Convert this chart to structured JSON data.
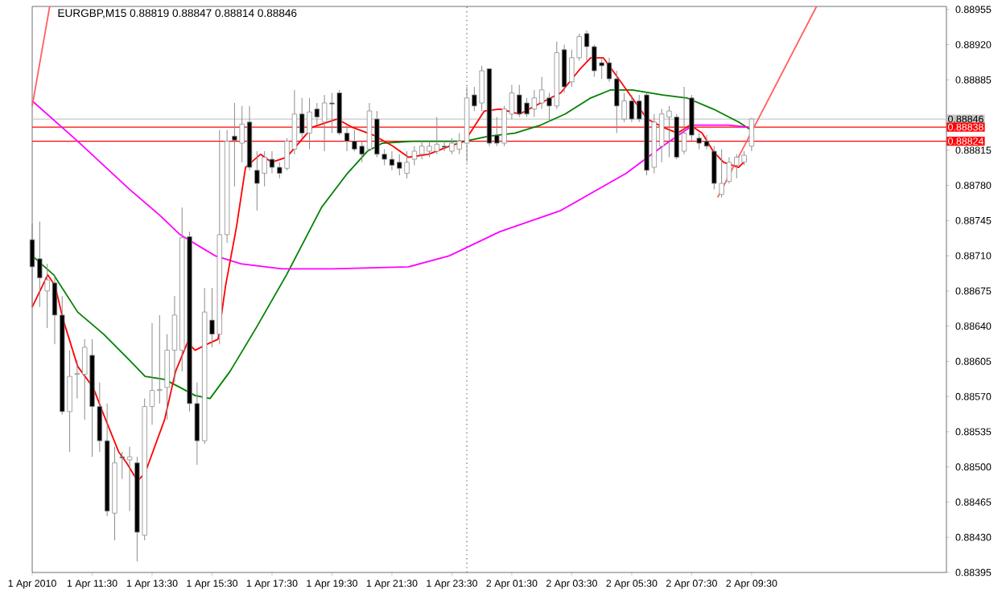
{
  "chart_data": {
    "type": "candlestick",
    "title": "EURGBP,M15 0.88819 0.88847 0.88814 0.88846",
    "xlim": [
      "2010-04-01T09:30",
      "2010-04-02T16:00"
    ],
    "ylim": [
      0.88395,
      0.88958
    ],
    "xticks": [
      {
        "value": "2010-04-01T09:30",
        "label": "1 Apr 2010"
      },
      {
        "value": "2010-04-01T11:30",
        "label": "1 Apr 11:30"
      },
      {
        "value": "2010-04-01T13:30",
        "label": "1 Apr 13:30"
      },
      {
        "value": "2010-04-01T15:30",
        "label": "1 Apr 15:30"
      },
      {
        "value": "2010-04-01T17:30",
        "label": "1 Apr 17:30"
      },
      {
        "value": "2010-04-01T19:30",
        "label": "1 Apr 19:30"
      },
      {
        "value": "2010-04-01T21:30",
        "label": "1 Apr 21:30"
      },
      {
        "value": "2010-04-01T23:30",
        "label": "1 Apr 23:30"
      },
      {
        "value": "2010-04-02T01:30",
        "label": "2 Apr 01:30"
      },
      {
        "value": "2010-04-02T03:30",
        "label": "2 Apr 03:30"
      },
      {
        "value": "2010-04-02T05:30",
        "label": "2 Apr 05:30"
      },
      {
        "value": "2010-04-02T07:30",
        "label": "2 Apr 07:30"
      },
      {
        "value": "2010-04-02T09:30",
        "label": "2 Apr 09:30"
      }
    ],
    "yticks": [
      0.88395,
      {
        "value": 0.8843,
        "label": "0.88430"
      },
      0.88465,
      {
        "value": 0.885,
        "label": "0.88500"
      },
      0.88535,
      {
        "value": 0.8857,
        "label": "0.88570"
      },
      0.88605,
      {
        "value": 0.8864,
        "label": "0.88640"
      },
      0.88675,
      {
        "value": 0.8871,
        "label": "0.88710"
      },
      0.88745,
      {
        "value": 0.8878,
        "label": "0.88780"
      },
      0.88815,
      {
        "value": 0.8885,
        "label": null
      },
      0.88885,
      {
        "value": 0.8892,
        "label": "0.88920"
      },
      0.88955
    ],
    "x": [
      "2010-04-01T09:30",
      "2010-04-01T09:45",
      "2010-04-01T10:00",
      "2010-04-01T10:15",
      "2010-04-01T10:30",
      "2010-04-01T10:45",
      "2010-04-01T11:00",
      "2010-04-01T11:15",
      "2010-04-01T11:30",
      "2010-04-01T11:45",
      "2010-04-01T12:00",
      "2010-04-01T12:15",
      "2010-04-01T12:30",
      "2010-04-01T12:45",
      "2010-04-01T13:00",
      "2010-04-01T13:15",
      "2010-04-01T13:30",
      "2010-04-01T13:45",
      "2010-04-01T14:00",
      "2010-04-01T14:15",
      "2010-04-01T14:30",
      "2010-04-01T14:45",
      "2010-04-01T15:00",
      "2010-04-01T15:15",
      "2010-04-01T15:30",
      "2010-04-01T15:45",
      "2010-04-01T16:00",
      "2010-04-01T16:15",
      "2010-04-01T16:30",
      "2010-04-01T16:45",
      "2010-04-01T17:00",
      "2010-04-01T17:15",
      "2010-04-01T17:30",
      "2010-04-01T17:45",
      "2010-04-01T18:00",
      "2010-04-01T18:15",
      "2010-04-01T18:30",
      "2010-04-01T18:45",
      "2010-04-01T19:00",
      "2010-04-01T19:15",
      "2010-04-01T19:30",
      "2010-04-01T19:45",
      "2010-04-01T20:00",
      "2010-04-01T20:15",
      "2010-04-01T20:30",
      "2010-04-01T20:45",
      "2010-04-01T21:00",
      "2010-04-01T21:15",
      "2010-04-01T21:30",
      "2010-04-01T21:45",
      "2010-04-01T22:00",
      "2010-04-01T22:15",
      "2010-04-01T22:30",
      "2010-04-01T22:45",
      "2010-04-01T23:00",
      "2010-04-01T23:15",
      "2010-04-01T23:30",
      "2010-04-01T23:45",
      "2010-04-02T00:00",
      "2010-04-02T00:15",
      "2010-04-02T00:30",
      "2010-04-02T00:45",
      "2010-04-02T01:00",
      "2010-04-02T01:15",
      "2010-04-02T01:30",
      "2010-04-02T01:45",
      "2010-04-02T02:00",
      "2010-04-02T02:15",
      "2010-04-02T02:30",
      "2010-04-02T02:45",
      "2010-04-02T03:00",
      "2010-04-02T03:15",
      "2010-04-02T03:30",
      "2010-04-02T03:45",
      "2010-04-02T04:00",
      "2010-04-02T04:15",
      "2010-04-02T04:30",
      "2010-04-02T04:45",
      "2010-04-02T05:00",
      "2010-04-02T05:15",
      "2010-04-02T05:30",
      "2010-04-02T05:45",
      "2010-04-02T06:00",
      "2010-04-02T06:15",
      "2010-04-02T06:30",
      "2010-04-02T06:45",
      "2010-04-02T07:00",
      "2010-04-02T07:15",
      "2010-04-02T07:30",
      "2010-04-02T07:45",
      "2010-04-02T08:00",
      "2010-04-02T08:15",
      "2010-04-02T08:30",
      "2010-04-02T08:45",
      "2010-04-02T09:00",
      "2010-04-02T09:15",
      "2010-04-02T09:30"
    ],
    "ohlc": [
      [
        0.88726,
        0.88742,
        0.88659,
        0.88699
      ],
      [
        0.88707,
        0.88744,
        0.88659,
        0.88688
      ],
      [
        0.88675,
        0.88702,
        0.88638,
        0.88686
      ],
      [
        0.88683,
        0.88691,
        0.88622,
        0.88651
      ],
      [
        0.88651,
        0.8867,
        0.88552,
        0.88555
      ],
      [
        0.88555,
        0.88616,
        0.88515,
        0.8859
      ],
      [
        0.88592,
        0.88606,
        0.88568,
        0.88593
      ],
      [
        0.88592,
        0.88627,
        0.88547,
        0.88619
      ],
      [
        0.88611,
        0.88627,
        0.8851,
        0.8856
      ],
      [
        0.8856,
        0.88584,
        0.88515,
        0.88526
      ],
      [
        0.88526,
        0.88563,
        0.88451,
        0.88456
      ],
      [
        0.88454,
        0.8852,
        0.88427,
        0.88504
      ],
      [
        0.8851,
        0.88515,
        0.88488,
        0.88509
      ],
      [
        0.88507,
        0.8852,
        0.88456,
        0.8851
      ],
      [
        0.88504,
        0.8851,
        0.88406,
        0.88435
      ],
      [
        0.88432,
        0.88568,
        0.88427,
        0.8856
      ],
      [
        0.8856,
        0.88643,
        0.88542,
        0.88576
      ],
      [
        0.88576,
        0.88651,
        0.88563,
        0.88577
      ],
      [
        0.88579,
        0.88632,
        0.88547,
        0.88616
      ],
      [
        0.88616,
        0.8867,
        0.88584,
        0.88651
      ],
      [
        0.88616,
        0.88758,
        0.88595,
        0.88728
      ],
      [
        0.88729,
        0.88734,
        0.88555,
        0.88563
      ],
      [
        0.88563,
        0.88584,
        0.88502,
        0.88526
      ],
      [
        0.88526,
        0.88678,
        0.88523,
        0.88654
      ],
      [
        0.88646,
        0.88678,
        0.88619,
        0.88632
      ],
      [
        0.88632,
        0.88835,
        0.88622,
        0.88731
      ],
      [
        0.88731,
        0.88835,
        0.88723,
        0.88824
      ],
      [
        0.88829,
        0.88862,
        0.88779,
        0.88825
      ],
      [
        0.88822,
        0.88859,
        0.88803,
        0.88841
      ],
      [
        0.88843,
        0.88859,
        0.88795,
        0.88798
      ],
      [
        0.88795,
        0.88814,
        0.88755,
        0.88782
      ],
      [
        0.88792,
        0.88814,
        0.88779,
        0.88808
      ],
      [
        0.88806,
        0.88814,
        0.88792,
        0.88798
      ],
      [
        0.88798,
        0.88803,
        0.88787,
        0.88792
      ],
      [
        0.88797,
        0.88827,
        0.88795,
        0.88824
      ],
      [
        0.88816,
        0.88875,
        0.88811,
        0.88851
      ],
      [
        0.88851,
        0.88867,
        0.88827,
        0.88832
      ],
      [
        0.88832,
        0.88867,
        0.88816,
        0.88853
      ],
      [
        0.88856,
        0.88862,
        0.8884,
        0.88848
      ],
      [
        0.88843,
        0.8887,
        0.88814,
        0.88862
      ],
      [
        0.88862,
        0.88872,
        0.88832,
        0.88861
      ],
      [
        0.88872,
        0.88875,
        0.8883,
        0.88832
      ],
      [
        0.88832,
        0.8884,
        0.88814,
        0.88824
      ],
      [
        0.88824,
        0.88835,
        0.88814,
        0.88816
      ],
      [
        0.88819,
        0.88824,
        0.88803,
        0.88811
      ],
      [
        0.88816,
        0.88862,
        0.88814,
        0.88854
      ],
      [
        0.88846,
        0.88854,
        0.88808,
        0.88811
      ],
      [
        0.88811,
        0.88816,
        0.888,
        0.88806
      ],
      [
        0.88806,
        0.88814,
        0.88795,
        0.888
      ],
      [
        0.88803,
        0.88811,
        0.8879,
        0.88797
      ],
      [
        0.88792,
        0.88814,
        0.88787,
        0.88803
      ],
      [
        0.88806,
        0.88819,
        0.888,
        0.88814
      ],
      [
        0.88811,
        0.88824,
        0.88806,
        0.88819
      ],
      [
        0.88814,
        0.88824,
        0.88808,
        0.88819
      ],
      [
        0.88814,
        0.88848,
        0.88811,
        0.88821
      ],
      [
        0.88819,
        0.88824,
        0.88814,
        0.88818
      ],
      [
        0.88814,
        0.88827,
        0.88811,
        0.88822
      ],
      [
        0.88816,
        0.88832,
        0.88811,
        0.88824
      ],
      [
        0.88822,
        0.88878,
        0.88803,
        0.88867
      ],
      [
        0.8887,
        0.88878,
        0.88854,
        0.88859
      ],
      [
        0.88862,
        0.88899,
        0.88854,
        0.88894
      ],
      [
        0.88896,
        0.88896,
        0.88819,
        0.88822
      ],
      [
        0.8883,
        0.88848,
        0.88819,
        0.88822
      ],
      [
        0.88822,
        0.88859,
        0.88819,
        0.88856
      ],
      [
        0.88851,
        0.8888,
        0.88846,
        0.88872
      ],
      [
        0.8887,
        0.8888,
        0.88848,
        0.88851
      ],
      [
        0.88862,
        0.88867,
        0.88848,
        0.88851
      ],
      [
        0.88856,
        0.88875,
        0.88848,
        0.88867
      ],
      [
        0.88862,
        0.88888,
        0.88856,
        0.88875
      ],
      [
        0.88867,
        0.88872,
        0.88843,
        0.88859
      ],
      [
        0.88859,
        0.88923,
        0.88856,
        0.88912
      ],
      [
        0.88915,
        0.8892,
        0.88872,
        0.88878
      ],
      [
        0.88883,
        0.88915,
        0.88878,
        0.88907
      ],
      [
        0.88907,
        0.88931,
        0.88904,
        0.88928
      ],
      [
        0.88931,
        0.88934,
        0.88904,
        0.88918
      ],
      [
        0.88918,
        0.8892,
        0.88888,
        0.88894
      ],
      [
        0.88902,
        0.88907,
        0.88886,
        0.88899
      ],
      [
        0.88902,
        0.88907,
        0.88883,
        0.88886
      ],
      [
        0.88886,
        0.88894,
        0.88832,
        0.88859
      ],
      [
        0.88846,
        0.88872,
        0.88843,
        0.88864
      ],
      [
        0.88864,
        0.8887,
        0.88843,
        0.88846
      ],
      [
        0.88864,
        0.8887,
        0.88843,
        0.88846
      ],
      [
        0.8887,
        0.88872,
        0.8879,
        0.88795
      ],
      [
        0.88798,
        0.88851,
        0.88792,
        0.88843
      ],
      [
        0.88819,
        0.88856,
        0.88803,
        0.88851
      ],
      [
        0.88848,
        0.88859,
        0.88808,
        0.88854
      ],
      [
        0.88848,
        0.88851,
        0.88806,
        0.88808
      ],
      [
        0.88814,
        0.88878,
        0.88811,
        0.88832
      ],
      [
        0.88867,
        0.8887,
        0.88824,
        0.8883
      ],
      [
        0.88827,
        0.88832,
        0.88816,
        0.88822
      ],
      [
        0.88824,
        0.8883,
        0.88816,
        0.88819
      ],
      [
        0.88814,
        0.88819,
        0.88776,
        0.88782
      ],
      [
        0.88771,
        0.88816,
        0.88768,
        0.88782
      ],
      [
        0.88784,
        0.88808,
        0.88782,
        0.88803
      ],
      [
        0.888,
        0.88811,
        0.88787,
        0.88808
      ],
      [
        0.88803,
        0.88814,
        0.888,
        0.8881
      ],
      [
        0.88819,
        0.88847,
        0.88814,
        0.88846
      ]
    ],
    "series": [
      {
        "type": "line",
        "color": "#008000",
        "x": [
          "2010-04-01T09:30",
          "2010-04-01T10:13",
          "2010-04-01T11:01",
          "2010-04-01T11:53",
          "2010-04-01T12:45",
          "2010-04-01T13:16",
          "2010-04-01T13:55",
          "2010-04-01T14:26",
          "2010-04-01T14:56",
          "2010-04-01T15:26",
          "2010-04-01T16:06",
          "2010-04-01T16:58",
          "2010-04-01T17:59",
          "2010-04-01T19:09",
          "2010-04-01T20:01",
          "2010-04-01T20:41",
          "2010-04-01T21:11",
          "2010-04-01T22:12",
          "2010-04-01T23:13",
          "2010-04-01T23:56",
          "2010-04-02T00:44",
          "2010-04-02T01:36",
          "2010-04-02T02:28",
          "2010-04-02T03:17",
          "2010-04-02T04:08",
          "2010-04-02T04:48",
          "2010-04-02T05:31",
          "2010-04-02T06:32",
          "2010-04-02T07:20",
          "2010-04-02T08:13",
          "2010-04-02T09:04",
          "2010-04-02T09:29"
        ],
        "values": [
          0.8871,
          0.88691,
          0.88654,
          0.88632,
          0.88606,
          0.8859,
          0.88587,
          0.88579,
          0.88571,
          0.88568,
          0.88595,
          0.88638,
          0.88691,
          0.88758,
          0.88792,
          0.88814,
          0.88822,
          0.88824,
          0.88824,
          0.88824,
          0.88829,
          0.88832,
          0.8884,
          0.88851,
          0.88867,
          0.88875,
          0.88875,
          0.8887,
          0.88867,
          0.88856,
          0.88843,
          0.88835
        ]
      },
      {
        "type": "line",
        "color": "#ff00ff",
        "x": [
          "2010-04-01T09:30",
          "2010-04-01T11:01",
          "2010-04-01T12:45",
          "2010-04-01T13:46",
          "2010-04-01T14:26",
          "2010-04-01T15:36",
          "2010-04-01T16:28",
          "2010-04-01T17:50",
          "2010-04-01T19:31",
          "2010-04-01T22:03",
          "2010-04-01T23:25",
          "2010-04-02T01:06",
          "2010-04-02T03:08",
          "2010-04-02T05:19",
          "2010-04-02T06:32",
          "2010-04-02T07:33",
          "2010-04-02T08:43",
          "2010-04-02T09:23"
        ],
        "values": [
          0.88864,
          0.88824,
          0.88776,
          0.8875,
          0.88731,
          0.8871,
          0.88702,
          0.88697,
          0.88697,
          0.88699,
          0.8871,
          0.88734,
          0.88755,
          0.88792,
          0.88819,
          0.8884,
          0.8884,
          0.88838
        ]
      },
      {
        "type": "line",
        "color": "#ff0000",
        "x": [
          "2010-04-01T09:30",
          "2010-04-01T10:01",
          "2010-04-01T10:16",
          "2010-04-01T10:31",
          "2010-04-01T11:01",
          "2010-04-01T11:32",
          "2010-04-01T11:53",
          "2010-04-01T12:23",
          "2010-04-01T12:39",
          "2010-04-01T13:01",
          "2010-04-01T13:16",
          "2010-04-01T13:55",
          "2010-04-01T14:17",
          "2010-04-01T14:41",
          "2010-04-01T14:56",
          "2010-04-01T15:20",
          "2010-04-01T15:42",
          "2010-04-01T15:57",
          "2010-04-01T16:19",
          "2010-04-01T16:37",
          "2010-04-01T17:07",
          "2010-04-01T17:29",
          "2010-04-01T17:59",
          "2010-04-01T18:51",
          "2010-04-01T19:40",
          "2010-04-01T20:10",
          "2010-04-01T20:53",
          "2010-04-01T21:32",
          "2010-04-01T22:03",
          "2010-04-01T22:43",
          "2010-04-01T23:25",
          "2010-04-01T23:56",
          "2010-04-02T00:35",
          "2010-04-02T01:06",
          "2010-04-02T01:46",
          "2010-04-02T02:28",
          "2010-04-02T03:08",
          "2010-04-02T03:47",
          "2010-04-02T04:08",
          "2010-04-02T04:33",
          "2010-04-02T05:01",
          "2010-04-02T05:31",
          "2010-04-02T06:01",
          "2010-04-02T06:32",
          "2010-04-02T07:02",
          "2010-04-02T07:27",
          "2010-04-02T07:51",
          "2010-04-02T08:13",
          "2010-04-02T08:34",
          "2010-04-02T09:04",
          "2010-04-02T09:20"
        ],
        "values": [
          0.88659,
          0.88691,
          0.8868,
          0.88648,
          0.886,
          0.88579,
          0.88552,
          0.88515,
          0.88504,
          0.88486,
          0.88494,
          0.88547,
          0.88595,
          0.88624,
          0.88616,
          0.88622,
          0.88627,
          0.8868,
          0.88739,
          0.88798,
          0.88811,
          0.88803,
          0.88808,
          0.88838,
          0.88846,
          0.88838,
          0.8883,
          0.88819,
          0.88808,
          0.88811,
          0.88819,
          0.88824,
          0.88854,
          0.88856,
          0.88851,
          0.88862,
          0.88872,
          0.88896,
          0.88907,
          0.88907,
          0.88888,
          0.88867,
          0.88846,
          0.88838,
          0.88832,
          0.8884,
          0.88832,
          0.88814,
          0.88803,
          0.88798,
          0.88806
        ]
      },
      {
        "type": "line",
        "color": "#ff6060",
        "x": [
          "2010-04-01T09:30",
          "2010-04-01T10:05"
        ],
        "values": [
          0.88859,
          0.88958
        ]
      },
      {
        "type": "line",
        "color": "#ff6060",
        "x": [
          "2010-04-02T08:22",
          "2010-04-02T11:40"
        ],
        "values": [
          0.88768,
          0.88958
        ]
      }
    ],
    "ref_lines": [
      {
        "axis": "y",
        "value": 0.88846,
        "label": "0.88846",
        "color": "#c8c8c8"
      },
      {
        "axis": "y",
        "value": 0.88838,
        "label": "0.88838",
        "color": "#ff0000"
      },
      {
        "axis": "y",
        "value": 0.88824,
        "label": "0.88824",
        "color": "#ff0000"
      },
      {
        "axis": "x",
        "value": "2010-04-02T00:00",
        "color": "#808080",
        "line_style": "dotted"
      }
    ]
  }
}
